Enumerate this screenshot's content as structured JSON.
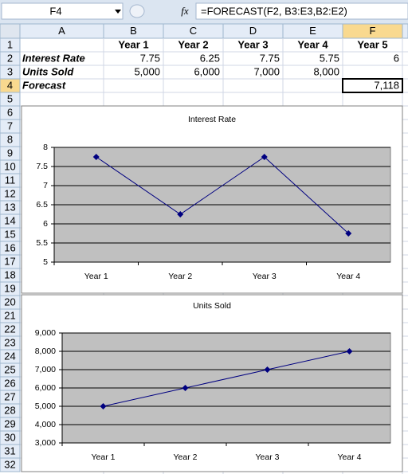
{
  "formula_bar": {
    "name_box": "F4",
    "fx": "fx",
    "formula": "=FORECAST(F2, B3:E3,B2:E2)"
  },
  "sheet": {
    "columns": [
      "A",
      "B",
      "C",
      "D",
      "E",
      "F"
    ],
    "rows": [
      1,
      2,
      3,
      4,
      5,
      6,
      7,
      8,
      9,
      10,
      11,
      12,
      13,
      14,
      15,
      16,
      17,
      18,
      19,
      20,
      21,
      22,
      23,
      24,
      25,
      26,
      27,
      28,
      29,
      30,
      31,
      32
    ],
    "cells": [
      [
        null,
        "Year 1",
        "Year 2",
        "Year 3",
        "Year 4",
        "Year 5"
      ],
      [
        "Interest Rate",
        "7.75",
        "6.25",
        "7.75",
        "5.75",
        "6"
      ],
      [
        "Units Sold",
        "5,000",
        "6,000",
        "7,000",
        "8,000",
        null
      ],
      [
        "Forecast",
        null,
        null,
        null,
        null,
        "7,118"
      ]
    ]
  },
  "chart_data": [
    {
      "type": "line",
      "title": "Interest Rate",
      "categories": [
        "Year 1",
        "Year 2",
        "Year 3",
        "Year 4"
      ],
      "values": [
        7.75,
        6.25,
        7.75,
        5.75
      ],
      "color": "#000080",
      "ylim": [
        5,
        8
      ],
      "yticks": [
        5,
        5.5,
        6,
        6.5,
        7,
        7.5,
        8
      ],
      "grid": true,
      "plot_background": "#c0c0c0"
    },
    {
      "type": "line",
      "title": "Units Sold",
      "categories": [
        "Year 1",
        "Year 2",
        "Year 3",
        "Year 4"
      ],
      "values": [
        5000,
        6000,
        7000,
        8000
      ],
      "color": "#000080",
      "ylim": [
        3000,
        9000
      ],
      "yticks": [
        {
          "value": 3000,
          "label": "3,000"
        },
        {
          "value": 4000,
          "label": "4,000"
        },
        {
          "value": 5000,
          "label": "5,000"
        },
        {
          "value": 6000,
          "label": "6,000"
        },
        {
          "value": 7000,
          "label": "7,000"
        },
        {
          "value": 8000,
          "label": "8,000"
        },
        {
          "value": 9000,
          "label": "9,000"
        }
      ],
      "grid": true,
      "plot_background": "#c0c0c0"
    }
  ]
}
